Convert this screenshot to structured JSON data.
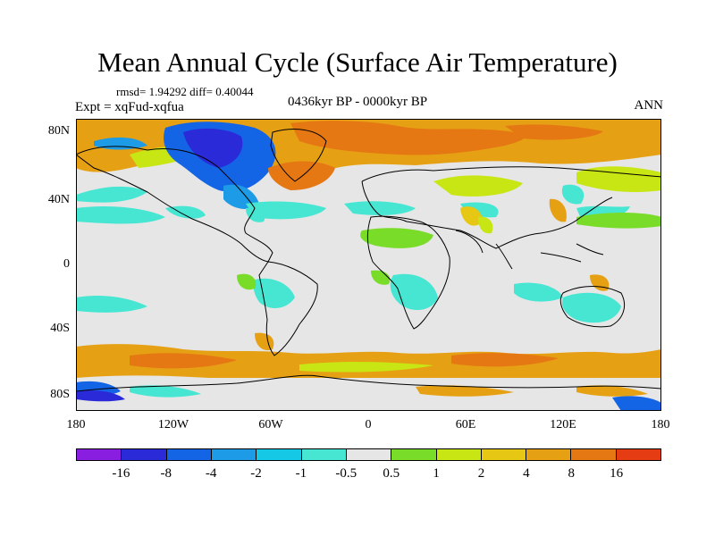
{
  "title": "Mean Annual Cycle (Surface Air Temperature)",
  "stats": "rmsd= 1.94292 diff= 0.40044",
  "expt": "Expt = xqFud-xqfua",
  "period": "0436kyr BP - 0000kyr BP",
  "season": "ANN",
  "lat_labels": [
    "80N",
    "40N",
    "0",
    "40S",
    "80S"
  ],
  "lon_labels": [
    "180",
    "120W",
    "60W",
    "0",
    "60E",
    "120E",
    "180"
  ],
  "colorbar": {
    "labels": [
      "-16",
      "-8",
      "-4",
      "-2",
      "-1",
      "-0.5",
      "0.5",
      "1",
      "2",
      "4",
      "8",
      "16"
    ],
    "colors": [
      "#8a1ee0",
      "#2a2ad8",
      "#1464e6",
      "#1e9be6",
      "#14c8e6",
      "#46e6d2",
      "#e6e6e6",
      "#78dc28",
      "#c8e614",
      "#e6c814",
      "#e6a014",
      "#e67814",
      "#e63c14"
    ]
  }
}
